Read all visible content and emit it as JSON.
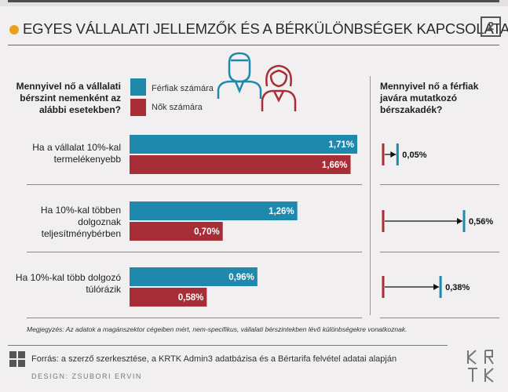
{
  "title": "EGYES VÁLLALATI JELLEMZŐK ÉS A BÉRKÜLÖNBSÉGEK KAPCSOLATA",
  "page_number": "2",
  "question_left": "Mennyivel nő a vállalati bérszint nemenként az alábbi esetekben?",
  "question_right": "Mennyivel nő a férfiak javára mutatkozó bérszakadék?",
  "legend": {
    "men": "Férfiak számára",
    "women": "Nők számára"
  },
  "colors": {
    "men": "#1f88ad",
    "women": "#a72e36",
    "accent": "#e8a31a"
  },
  "icons": [
    "man-icon",
    "woman-icon"
  ],
  "chart_data": {
    "type": "bar",
    "orientation": "horizontal",
    "categories": [
      "Ha a vállalat 10%-kal termelékenyebb",
      "Ha 10%-kal többen dolgoznak teljesítménybérben",
      "Ha 10%-kal több dolgozó túlórázik"
    ],
    "series": [
      {
        "name": "Férfiak számára",
        "values": [
          1.71,
          1.26,
          0.96
        ],
        "labels": [
          "1,71%",
          "1,26%",
          "0,96%"
        ]
      },
      {
        "name": "Nők számára",
        "values": [
          1.66,
          0.7,
          0.58
        ],
        "labels": [
          "1,66%",
          "0,70%",
          "0,58%"
        ]
      }
    ],
    "gap": {
      "values": [
        0.05,
        0.56,
        0.38
      ],
      "labels": [
        "0,05%",
        "0,56%",
        "0,38%"
      ]
    }
  },
  "note": "Megjegyzés: Az adatok a magánszektor cégeiben mért, nem-specifikus, vállalati bérszintekben lévő különbségekre vonatkoznak.",
  "source": "Forrás: a szerző szerkesztése, a KRTK Admin3 adatbázisa és a Bértarifa felvétel adatai alapján",
  "design_credit": "DESIGN: ZSUBORI ERVIN",
  "logo_text": "KRTK"
}
